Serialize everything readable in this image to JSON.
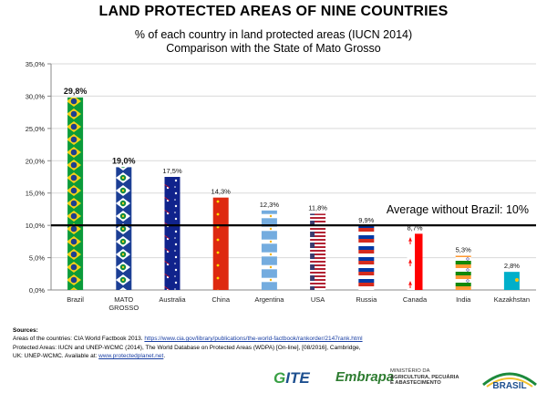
{
  "chart_data": {
    "type": "bar",
    "title": "LAND PROTECTED AREAS OF NINE COUNTRIES",
    "subtitle": [
      "% of each country in land protected areas (IUCN 2014)",
      "Comparison with the State of Mato Grosso"
    ],
    "categories": [
      "Brazil",
      "MATO GROSSO",
      "Australia",
      "China",
      "Argentina",
      "USA",
      "Russia",
      "Canada",
      "India",
      "Kazakhstan"
    ],
    "values": [
      29.8,
      19.0,
      17.5,
      14.3,
      12.3,
      11.8,
      9.9,
      8.7,
      5.3,
      2.8
    ],
    "data_labels": [
      "29,8%",
      "19,0%",
      "17,5%",
      "14,3%",
      "12,3%",
      "11,8%",
      "9,9%",
      "8,7%",
      "5,3%",
      "2,8%"
    ],
    "y_ticks": [
      "0,0%",
      "5,0%",
      "10,0%",
      "15,0%",
      "20,0%",
      "25,0%",
      "30,0%",
      "35,0%"
    ],
    "ylim": [
      0,
      35
    ],
    "grid": true,
    "reference_line": {
      "value": 10,
      "label": "Average without Brazil: 10%"
    },
    "bar_fills": [
      "flag-brazil",
      "flag-mato-grosso",
      "flag-australia",
      "flag-china",
      "flag-argentina",
      "flag-usa",
      "flag-russia",
      "flag-canada",
      "flag-india",
      "flag-kazakhstan"
    ]
  },
  "sources": {
    "heading": "Sources:",
    "line1_text": "Areas of the countries:  CIA World Factbook 2013. ",
    "line1_link": "https://www.cia.gov/library/publications/the-world-factbook/rankorder/2147rank.html",
    "line2_text": "Protected Areas:  IUCN and UNEP-WCMC (2014), The World Database on Protected Areas (WDPA) [On-line], [08/2016], Cambridge,",
    "line3_text": "UK: UNEP-WCMC. Available at: ",
    "line3_link": "www.protectedplanet.net",
    "line3_end": "."
  },
  "logos": {
    "gite_g": "G",
    "gite_rest": "ITE",
    "embrapa": "Embrapa",
    "mapa_line1": "MINISTÉRIO DA",
    "mapa_line2": "AGRICULTURA, PECUÁRIA",
    "mapa_line3": "E ABASTECIMENTO",
    "brasil": "BRASIL"
  },
  "colors": {
    "grid": "#d9d9d9",
    "axis": "#888888",
    "reference_line": "#000000",
    "link": "#1a3fa3"
  }
}
